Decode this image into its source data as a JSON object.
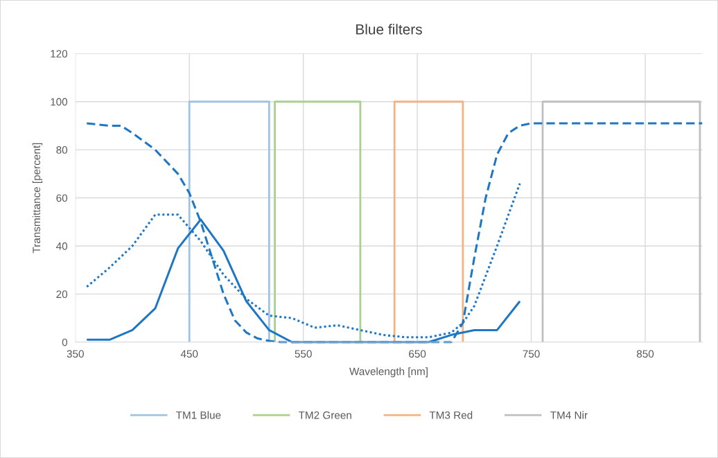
{
  "chart_data": {
    "type": "line",
    "title": "Blue filters",
    "xlabel": "Wavelength [nm]",
    "ylabel": "Transmittance [percent]",
    "xlim": [
      350,
      900
    ],
    "xticks": [
      350,
      450,
      550,
      650,
      750,
      850
    ],
    "ylim": [
      0,
      120
    ],
    "yticks": [
      0,
      20,
      40,
      60,
      80,
      100,
      120
    ],
    "grid": true,
    "legend": "bottom",
    "marker": "none",
    "series": [
      {
        "name": "TM1 Blue",
        "color": "#9dc3e6",
        "line_style": "solid",
        "x": [
          450,
          450,
          520,
          520
        ],
        "values": [
          0,
          100,
          100,
          0
        ]
      },
      {
        "name": "TM2 Green",
        "color": "#a9d18e",
        "line_style": "solid",
        "x": [
          525,
          525,
          600,
          600
        ],
        "values": [
          0,
          100,
          100,
          0
        ]
      },
      {
        "name": "TM3 Red",
        "color": "#f4b183",
        "line_style": "solid",
        "x": [
          630,
          630,
          690,
          690
        ],
        "values": [
          0,
          100,
          100,
          0
        ]
      },
      {
        "name": "TM4 Nir",
        "color": "#bfbfbf",
        "line_style": "solid",
        "x": [
          760,
          760,
          898,
          898
        ],
        "values": [
          0,
          100,
          100,
          0
        ]
      },
      {
        "color": "#1f77c4",
        "line_style": "dashed",
        "x": [
          360,
          380,
          390,
          400,
          420,
          440,
          450,
          460,
          470,
          480,
          490,
          500,
          510,
          520,
          530,
          680,
          690,
          700,
          710,
          720,
          730,
          740,
          750,
          900
        ],
        "values": [
          91,
          90,
          90,
          87,
          80,
          70,
          62,
          50,
          35,
          20,
          9,
          4,
          1.5,
          0.5,
          0,
          0,
          8,
          35,
          60,
          78,
          87,
          90,
          91,
          91
        ]
      },
      {
        "color": "#1f77c4",
        "line_style": "solid",
        "x": [
          360,
          380,
          400,
          420,
          440,
          460,
          480,
          500,
          520,
          540,
          560,
          580,
          600,
          620,
          640,
          660,
          680,
          700,
          720,
          740
        ],
        "values": [
          1,
          1,
          5,
          14,
          39,
          51,
          38,
          17,
          5,
          0,
          0,
          0,
          0,
          0,
          0,
          0,
          3,
          5,
          5,
          17
        ]
      },
      {
        "color": "#1f77c4",
        "line_style": "dotted",
        "x": [
          360,
          380,
          400,
          420,
          440,
          460,
          480,
          500,
          520,
          540,
          560,
          580,
          600,
          620,
          640,
          660,
          680,
          690,
          700,
          720,
          740
        ],
        "values": [
          23,
          31,
          40,
          53,
          53,
          42,
          28,
          18,
          11,
          10,
          6,
          7,
          5,
          3,
          2,
          2,
          4,
          8,
          15,
          40,
          66
        ]
      }
    ]
  }
}
